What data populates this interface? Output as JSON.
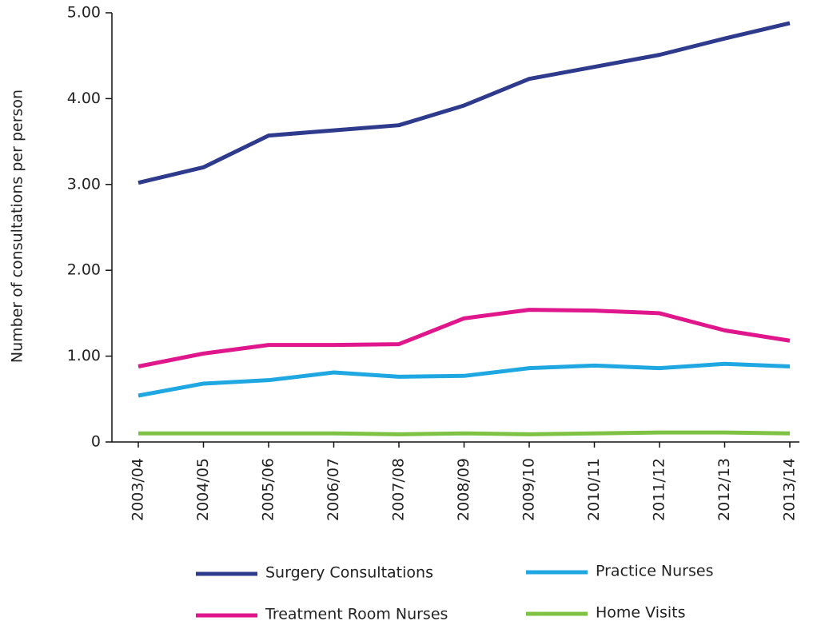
{
  "chart_data": {
    "type": "line",
    "y_label": "Number of consultations per person",
    "categories": [
      "2003/04",
      "2004/05",
      "2005/06",
      "2006/07",
      "2007/08",
      "2008/09",
      "2009/10",
      "2010/11",
      "2011/12",
      "2012/13",
      "2013/14"
    ],
    "series": [
      {
        "name": "Surgery Consultations",
        "color": "#2e3a8c",
        "values": [
          3.02,
          3.2,
          3.57,
          3.63,
          3.69,
          3.92,
          4.23,
          4.37,
          4.51,
          4.7,
          4.88
        ]
      },
      {
        "name": "Practice Nurses",
        "color": "#1ea7e1",
        "values": [
          0.54,
          0.68,
          0.72,
          0.81,
          0.76,
          0.77,
          0.86,
          0.89,
          0.86,
          0.91,
          0.88
        ]
      },
      {
        "name": "Treatment Room Nurses",
        "color": "#e0168c",
        "values": [
          0.88,
          1.03,
          1.13,
          1.13,
          1.14,
          1.44,
          1.54,
          1.53,
          1.5,
          1.3,
          1.18
        ]
      },
      {
        "name": "Home Visits",
        "color": "#7dc242",
        "values": [
          0.1,
          0.1,
          0.1,
          0.1,
          0.09,
          0.1,
          0.09,
          0.1,
          0.11,
          0.11,
          0.1
        ]
      }
    ],
    "ylim": [
      0,
      5
    ],
    "yticks": [
      0,
      {
        "value": 1,
        "label": "1.00"
      },
      {
        "value": 2,
        "label": "2.00"
      },
      {
        "value": 3,
        "label": "3.00"
      },
      {
        "value": 4,
        "label": "4.00"
      },
      {
        "value": 5,
        "label": "5.00"
      }
    ]
  }
}
